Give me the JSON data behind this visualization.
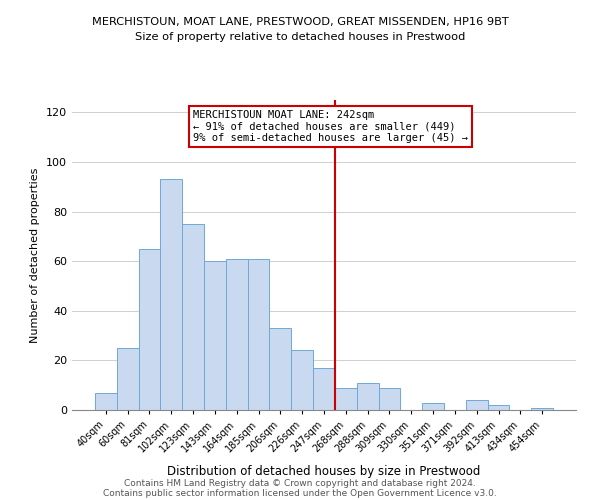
{
  "title1": "MERCHISTOUN, MOAT LANE, PRESTWOOD, GREAT MISSENDEN, HP16 9BT",
  "title2": "Size of property relative to detached houses in Prestwood",
  "xlabel": "Distribution of detached houses by size in Prestwood",
  "ylabel": "Number of detached properties",
  "bar_labels": [
    "40sqm",
    "60sqm",
    "81sqm",
    "102sqm",
    "123sqm",
    "143sqm",
    "164sqm",
    "185sqm",
    "206sqm",
    "226sqm",
    "247sqm",
    "268sqm",
    "288sqm",
    "309sqm",
    "330sqm",
    "351sqm",
    "371sqm",
    "392sqm",
    "413sqm",
    "434sqm",
    "454sqm"
  ],
  "bar_values": [
    7,
    25,
    65,
    93,
    75,
    60,
    61,
    61,
    33,
    24,
    17,
    9,
    11,
    9,
    0,
    3,
    0,
    4,
    2,
    0,
    1
  ],
  "bar_color": "#c8d9f0",
  "bar_edge_color": "#6fa8d6",
  "vline_x": 10.5,
  "vline_color": "#cc0000",
  "annotation_title": "MERCHISTOUN MOAT LANE: 242sqm",
  "annotation_line1": "← 91% of detached houses are smaller (449)",
  "annotation_line2": "9% of semi-detached houses are larger (45) →",
  "annotation_box_edge": "#cc0000",
  "ylim": [
    0,
    125
  ],
  "yticks": [
    0,
    20,
    40,
    60,
    80,
    100,
    120
  ],
  "footer1": "Contains HM Land Registry data © Crown copyright and database right 2024.",
  "footer2": "Contains public sector information licensed under the Open Government Licence v3.0."
}
